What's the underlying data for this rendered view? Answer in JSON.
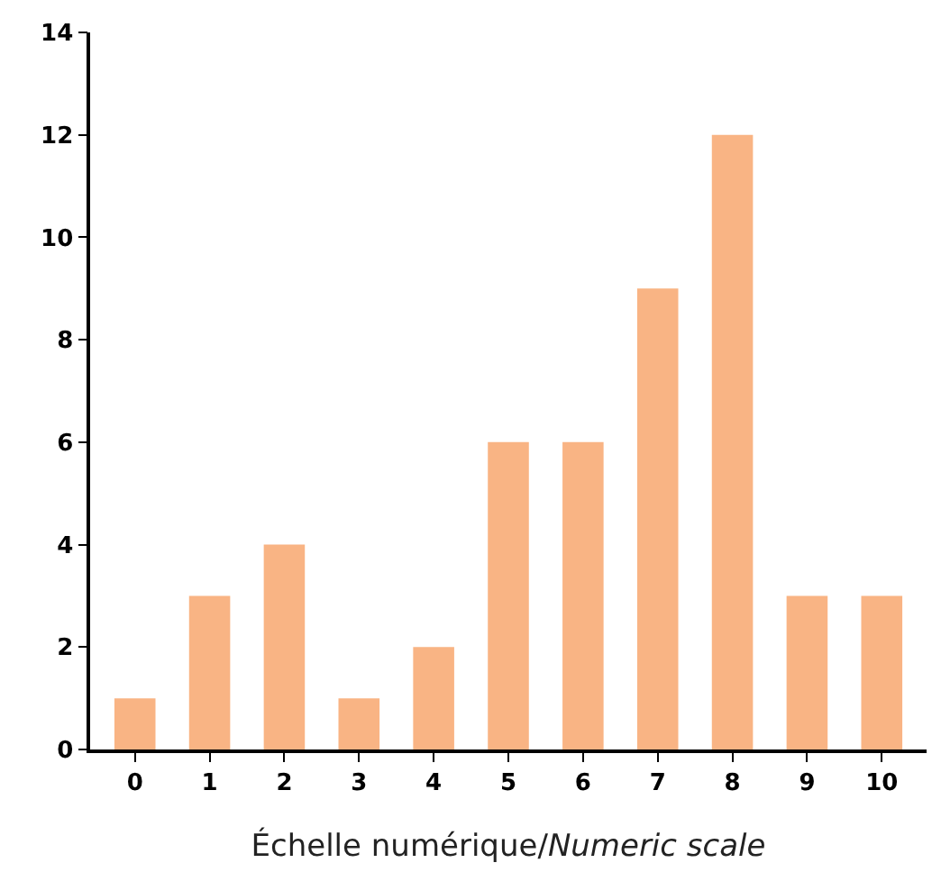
{
  "chart_data": {
    "type": "bar",
    "categories": [
      "0",
      "1",
      "2",
      "3",
      "4",
      "5",
      "6",
      "7",
      "8",
      "9",
      "10"
    ],
    "values": [
      1,
      3,
      4,
      1,
      2,
      6,
      6,
      9,
      12,
      3,
      3
    ],
    "color": "#f9b484",
    "xlabel": "Échelle numérique/Numeric scale",
    "ylim": [
      0,
      14
    ],
    "yticks": [
      0,
      2,
      4,
      6,
      8,
      10,
      12,
      14
    ]
  }
}
